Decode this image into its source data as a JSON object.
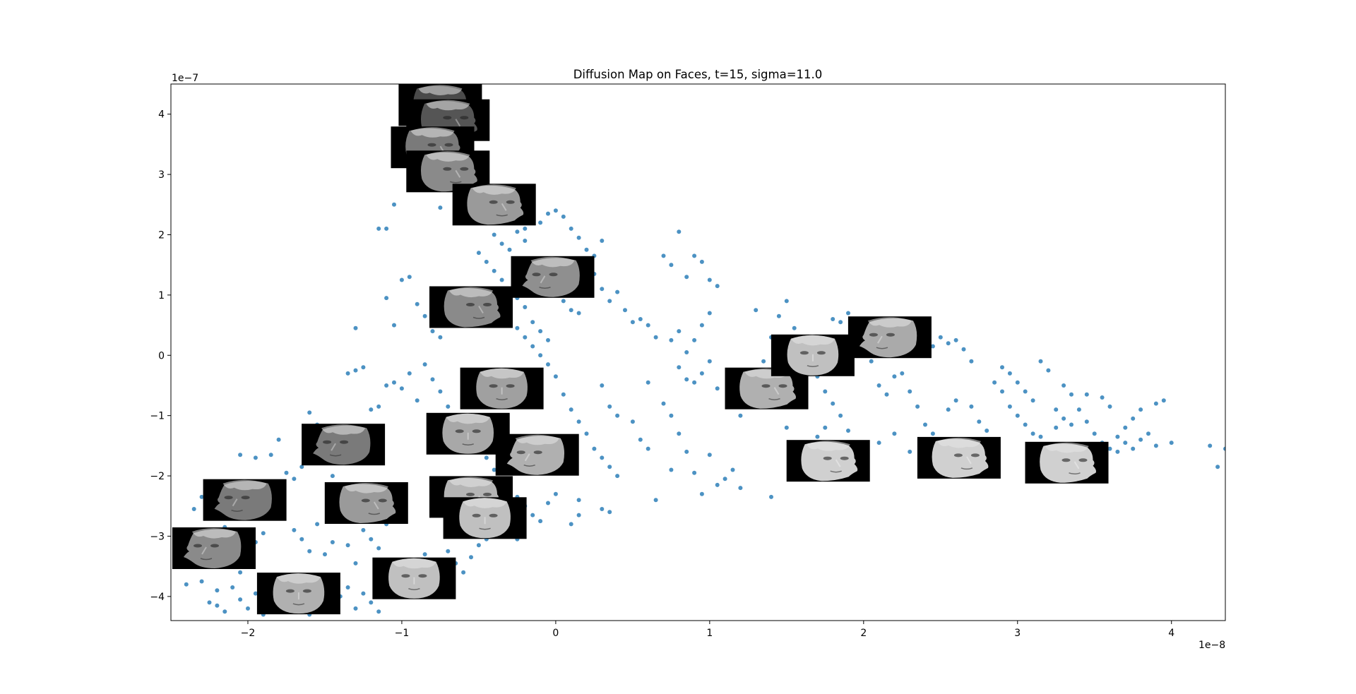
{
  "chart_data": {
    "type": "scatter",
    "title": "Diffusion Map on Faces, t=15, sigma=11.0",
    "xlabel": "",
    "ylabel": "",
    "x_offset_label": "1e−8",
    "y_offset_label": "1e−7",
    "x_scale_exponent": -8,
    "y_scale_exponent": -7,
    "xlim": [
      -2.5,
      4.35
    ],
    "ylim": [
      -4.4,
      4.5
    ],
    "x_ticks": [
      -2,
      -1,
      0,
      1,
      2,
      3,
      4
    ],
    "y_ticks": [
      -4,
      -3,
      -2,
      -1,
      0,
      1,
      2,
      3,
      4
    ],
    "x_tick_labels": [
      "−2",
      "−1",
      "0",
      "1",
      "2",
      "3",
      "4"
    ],
    "y_tick_labels": [
      "−4",
      "−3",
      "−2",
      "−1",
      "0",
      "1",
      "2",
      "3",
      "4"
    ],
    "grid": false,
    "point_color": "#1f77b4",
    "face_thumbnail_color": "#000000",
    "points": [
      [
        -2.4,
        -3.8
      ],
      [
        -2.3,
        -3.75
      ],
      [
        -2.25,
        -4.1
      ],
      [
        -2.2,
        -3.9
      ],
      [
        -2.2,
        -4.15
      ],
      [
        -2.15,
        -4.25
      ],
      [
        -2.1,
        -3.85
      ],
      [
        -2.05,
        -4.05
      ],
      [
        -2.0,
        -4.2
      ],
      [
        -1.95,
        -3.95
      ],
      [
        -1.9,
        -4.3
      ],
      [
        -1.85,
        -4.1
      ],
      [
        -1.8,
        -3.8
      ],
      [
        -1.75,
        -4.2
      ],
      [
        -1.7,
        -3.95
      ],
      [
        -1.65,
        -4.05
      ],
      [
        -1.6,
        -4.3
      ],
      [
        -1.55,
        -3.9
      ],
      [
        -1.5,
        -4.15
      ],
      [
        -1.45,
        -3.75
      ],
      [
        -1.4,
        -4.0
      ],
      [
        -1.35,
        -3.85
      ],
      [
        -1.3,
        -4.2
      ],
      [
        -1.25,
        -3.95
      ],
      [
        -1.2,
        -4.1
      ],
      [
        -1.15,
        -4.25
      ],
      [
        -1.1,
        -3.7
      ],
      [
        -1.05,
        -3.9
      ],
      [
        -1.0,
        -3.55
      ],
      [
        -0.95,
        -3.4
      ],
      [
        -0.9,
        -3.6
      ],
      [
        -0.85,
        -3.3
      ],
      [
        -0.8,
        -3.5
      ],
      [
        -0.75,
        -3.8
      ],
      [
        -0.7,
        -3.25
      ],
      [
        -0.65,
        -3.45
      ],
      [
        -0.6,
        -3.6
      ],
      [
        -0.55,
        -3.35
      ],
      [
        -0.5,
        -3.15
      ],
      [
        -0.45,
        -3.05
      ],
      [
        -2.05,
        -1.65
      ],
      [
        -2.0,
        -2.1
      ],
      [
        -1.95,
        -1.7
      ],
      [
        -1.9,
        -2.3
      ],
      [
        -1.85,
        -1.65
      ],
      [
        -1.8,
        -1.4
      ],
      [
        -1.75,
        -1.95
      ],
      [
        -1.7,
        -2.05
      ],
      [
        -1.65,
        -1.85
      ],
      [
        -1.6,
        -0.95
      ],
      [
        -1.55,
        -1.15
      ],
      [
        -1.5,
        -1.3
      ],
      [
        -1.45,
        -2.0
      ],
      [
        -1.4,
        -2.35
      ],
      [
        -1.35,
        -2.55
      ],
      [
        -1.3,
        -2.7
      ],
      [
        -1.25,
        -2.9
      ],
      [
        -1.2,
        -3.05
      ],
      [
        -1.15,
        -3.2
      ],
      [
        -1.1,
        -2.8
      ],
      [
        -1.7,
        -2.9
      ],
      [
        -1.65,
        -3.05
      ],
      [
        -1.6,
        -3.25
      ],
      [
        -1.55,
        -2.8
      ],
      [
        -1.5,
        -3.3
      ],
      [
        -1.45,
        -3.1
      ],
      [
        -1.4,
        -2.75
      ],
      [
        -1.35,
        -3.15
      ],
      [
        -1.3,
        -3.45
      ],
      [
        -1.25,
        -2.6
      ],
      [
        -2.35,
        -2.55
      ],
      [
        -2.3,
        -2.35
      ],
      [
        -2.25,
        -2.7
      ],
      [
        -2.2,
        -2.5
      ],
      [
        -2.15,
        -2.85
      ],
      [
        -2.1,
        -3.3
      ],
      [
        -2.05,
        -3.6
      ],
      [
        -2.0,
        -3.45
      ],
      [
        -1.95,
        -3.1
      ],
      [
        -1.9,
        -2.95
      ],
      [
        -1.35,
        -0.3
      ],
      [
        -1.3,
        -0.25
      ],
      [
        -1.25,
        -0.2
      ],
      [
        -1.2,
        -0.9
      ],
      [
        -1.15,
        -0.85
      ],
      [
        -1.1,
        -0.5
      ],
      [
        -1.05,
        -0.45
      ],
      [
        -1.0,
        -0.55
      ],
      [
        -0.95,
        -0.3
      ],
      [
        -0.9,
        -0.75
      ],
      [
        -1.3,
        0.45
      ],
      [
        -1.1,
        0.95
      ],
      [
        -1.05,
        0.5
      ],
      [
        -1.0,
        1.25
      ],
      [
        -0.95,
        1.3
      ],
      [
        -0.9,
        0.85
      ],
      [
        -0.85,
        0.65
      ],
      [
        -0.8,
        0.4
      ],
      [
        -0.75,
        0.3
      ],
      [
        -0.7,
        0.7
      ],
      [
        -1.15,
        2.1
      ],
      [
        -1.1,
        2.1
      ],
      [
        -1.05,
        2.5
      ],
      [
        -0.95,
        4.15
      ],
      [
        -0.9,
        3.95
      ],
      [
        -0.85,
        3.7
      ],
      [
        -0.8,
        3.45
      ],
      [
        -0.75,
        2.45
      ],
      [
        -0.7,
        2.95
      ],
      [
        -0.65,
        3.2
      ],
      [
        -0.6,
        2.8
      ],
      [
        -0.55,
        2.55
      ],
      [
        -0.5,
        2.35
      ],
      [
        -0.45,
        2.2
      ],
      [
        -0.4,
        2.0
      ],
      [
        -0.35,
        1.85
      ],
      [
        -0.3,
        1.75
      ],
      [
        -0.25,
        2.05
      ],
      [
        -0.2,
        1.9
      ],
      [
        -0.15,
        1.6
      ],
      [
        -0.5,
        1.7
      ],
      [
        -0.45,
        1.55
      ],
      [
        -0.4,
        1.4
      ],
      [
        -0.35,
        1.25
      ],
      [
        -0.3,
        1.1
      ],
      [
        -0.25,
        0.95
      ],
      [
        -0.2,
        0.8
      ],
      [
        -0.15,
        0.55
      ],
      [
        -0.1,
        0.4
      ],
      [
        -0.05,
        0.25
      ],
      [
        -0.85,
        -0.15
      ],
      [
        -0.8,
        -0.4
      ],
      [
        -0.75,
        -0.6
      ],
      [
        -0.7,
        -0.85
      ],
      [
        -0.65,
        -1.0
      ],
      [
        -0.6,
        -1.2
      ],
      [
        -0.55,
        -1.35
      ],
      [
        -0.5,
        -1.5
      ],
      [
        -0.45,
        -1.7
      ],
      [
        -0.4,
        -1.9
      ],
      [
        -0.35,
        -2.05
      ],
      [
        -0.3,
        -2.2
      ],
      [
        -0.25,
        -2.35
      ],
      [
        -0.2,
        -2.5
      ],
      [
        -0.15,
        -2.65
      ],
      [
        -0.1,
        -2.75
      ],
      [
        -0.05,
        -2.45
      ],
      [
        0.0,
        -2.3
      ],
      [
        -0.3,
        -2.85
      ],
      [
        -0.25,
        -3.05
      ],
      [
        -0.3,
        0.6
      ],
      [
        -0.25,
        0.45
      ],
      [
        -0.2,
        0.3
      ],
      [
        -0.15,
        0.15
      ],
      [
        -0.1,
        0.0
      ],
      [
        -0.05,
        -0.15
      ],
      [
        0.0,
        -0.35
      ],
      [
        0.05,
        -0.65
      ],
      [
        0.1,
        -0.9
      ],
      [
        0.15,
        -1.1
      ],
      [
        0.2,
        -1.3
      ],
      [
        0.25,
        -1.55
      ],
      [
        0.3,
        -1.7
      ],
      [
        0.35,
        -1.85
      ],
      [
        0.4,
        -2.0
      ],
      [
        0.15,
        -2.4
      ],
      [
        0.15,
        -2.65
      ],
      [
        0.1,
        -2.8
      ],
      [
        0.3,
        -2.55
      ],
      [
        0.35,
        -2.6
      ],
      [
        0.0,
        1.05
      ],
      [
        0.05,
        0.9
      ],
      [
        0.1,
        0.75
      ],
      [
        0.15,
        0.7
      ],
      [
        0.2,
        1.2
      ],
      [
        0.25,
        1.35
      ],
      [
        0.3,
        1.1
      ],
      [
        0.35,
        0.9
      ],
      [
        0.4,
        1.05
      ],
      [
        0.45,
        0.75
      ],
      [
        0.5,
        0.55
      ],
      [
        0.55,
        0.6
      ],
      [
        0.6,
        0.5
      ],
      [
        0.65,
        0.3
      ],
      [
        0.3,
        -0.5
      ],
      [
        0.35,
        -0.85
      ],
      [
        0.4,
        -1.0
      ],
      [
        0.5,
        -1.1
      ],
      [
        0.55,
        -1.4
      ],
      [
        0.6,
        -1.55
      ],
      [
        -0.1,
        2.2
      ],
      [
        -0.05,
        2.35
      ],
      [
        0.0,
        2.4
      ],
      [
        0.05,
        2.3
      ],
      [
        0.1,
        2.1
      ],
      [
        0.15,
        1.95
      ],
      [
        0.2,
        1.75
      ],
      [
        0.25,
        1.65
      ],
      [
        0.3,
        1.9
      ],
      [
        -0.2,
        2.1
      ],
      [
        0.7,
        1.65
      ],
      [
        0.75,
        1.5
      ],
      [
        0.8,
        2.05
      ],
      [
        0.85,
        1.3
      ],
      [
        0.9,
        1.65
      ],
      [
        0.95,
        1.55
      ],
      [
        1.0,
        1.25
      ],
      [
        1.05,
        1.15
      ],
      [
        1.0,
        0.7
      ],
      [
        0.95,
        0.5
      ],
      [
        0.9,
        0.25
      ],
      [
        0.85,
        0.05
      ],
      [
        0.8,
        0.4
      ],
      [
        0.75,
        0.25
      ],
      [
        0.8,
        -0.2
      ],
      [
        0.85,
        -0.4
      ],
      [
        0.9,
        -0.45
      ],
      [
        0.95,
        -0.3
      ],
      [
        1.0,
        -0.1
      ],
      [
        1.05,
        -0.55
      ],
      [
        0.7,
        -0.8
      ],
      [
        0.75,
        -1.0
      ],
      [
        0.8,
        -1.3
      ],
      [
        0.85,
        -1.6
      ],
      [
        0.9,
        -1.95
      ],
      [
        0.95,
        -2.3
      ],
      [
        1.05,
        -2.15
      ],
      [
        1.1,
        -2.05
      ],
      [
        1.15,
        -1.9
      ],
      [
        1.2,
        -2.2
      ],
      [
        0.6,
        -0.45
      ],
      [
        0.65,
        -2.4
      ],
      [
        0.75,
        -1.9
      ],
      [
        1.0,
        -1.65
      ],
      [
        1.2,
        -1.0
      ],
      [
        1.25,
        -0.75
      ],
      [
        1.3,
        -0.4
      ],
      [
        1.35,
        -0.1
      ],
      [
        1.4,
        0.3
      ],
      [
        1.45,
        0.65
      ],
      [
        1.5,
        0.9
      ],
      [
        1.55,
        0.45
      ],
      [
        1.6,
        0.2
      ],
      [
        1.65,
        -0.1
      ],
      [
        1.7,
        -0.35
      ],
      [
        1.75,
        -0.6
      ],
      [
        1.8,
        -0.8
      ],
      [
        1.85,
        -1.0
      ],
      [
        1.9,
        -1.25
      ],
      [
        1.4,
        -2.35
      ],
      [
        1.3,
        0.75
      ],
      [
        1.5,
        -1.2
      ],
      [
        1.6,
        -1.45
      ],
      [
        1.7,
        -1.35
      ],
      [
        1.75,
        -1.2
      ],
      [
        1.8,
        0.6
      ],
      [
        1.85,
        0.55
      ],
      [
        1.9,
        0.7
      ],
      [
        1.95,
        0.35
      ],
      [
        2.0,
        0.15
      ],
      [
        2.05,
        -0.1
      ],
      [
        2.1,
        -0.5
      ],
      [
        2.15,
        -0.65
      ],
      [
        2.2,
        -0.35
      ],
      [
        2.25,
        -0.3
      ],
      [
        2.3,
        -0.6
      ],
      [
        2.35,
        -0.85
      ],
      [
        2.4,
        -1.15
      ],
      [
        2.45,
        -1.3
      ],
      [
        2.5,
        -1.5
      ],
      [
        2.1,
        -1.45
      ],
      [
        2.2,
        -1.3
      ],
      [
        2.3,
        -1.6
      ],
      [
        2.4,
        -1.55
      ],
      [
        2.45,
        0.15
      ],
      [
        2.5,
        0.3
      ],
      [
        2.55,
        0.2
      ],
      [
        2.6,
        0.25
      ],
      [
        2.65,
        0.1
      ],
      [
        2.7,
        -0.1
      ],
      [
        2.6,
        -0.75
      ],
      [
        2.7,
        -0.85
      ],
      [
        2.75,
        -1.1
      ],
      [
        2.8,
        -1.25
      ],
      [
        2.85,
        -1.45
      ],
      [
        2.9,
        -0.2
      ],
      [
        2.95,
        -0.3
      ],
      [
        3.0,
        -0.45
      ],
      [
        3.05,
        -0.6
      ],
      [
        3.1,
        -0.75
      ],
      [
        2.85,
        -0.45
      ],
      [
        2.9,
        -0.6
      ],
      [
        2.95,
        -0.85
      ],
      [
        3.0,
        -1.0
      ],
      [
        3.05,
        -1.15
      ],
      [
        3.1,
        -1.3
      ],
      [
        3.15,
        -0.1
      ],
      [
        3.2,
        -0.25
      ],
      [
        3.25,
        -0.9
      ],
      [
        3.3,
        -0.5
      ],
      [
        3.35,
        -0.65
      ],
      [
        3.4,
        -0.9
      ],
      [
        3.45,
        -1.1
      ],
      [
        3.5,
        -1.3
      ],
      [
        3.55,
        -1.45
      ],
      [
        3.6,
        -1.55
      ],
      [
        3.65,
        -1.35
      ],
      [
        3.7,
        -1.2
      ],
      [
        3.75,
        -1.05
      ],
      [
        3.8,
        -0.9
      ],
      [
        3.85,
        -1.3
      ],
      [
        3.9,
        -1.5
      ],
      [
        3.95,
        -0.75
      ],
      [
        3.7,
        -1.45
      ],
      [
        3.75,
        -1.55
      ],
      [
        3.8,
        -1.4
      ],
      [
        4.0,
        -1.45
      ],
      [
        4.25,
        -1.5
      ],
      [
        4.3,
        -1.85
      ],
      [
        4.35,
        -1.55
      ],
      [
        3.45,
        -0.65
      ],
      [
        3.55,
        -0.7
      ],
      [
        3.6,
        -0.85
      ],
      [
        3.3,
        -1.05
      ],
      [
        3.25,
        -1.2
      ],
      [
        3.15,
        -1.35
      ],
      [
        3.35,
        -1.15
      ],
      [
        3.9,
        -0.8
      ],
      [
        3.65,
        -1.6
      ],
      [
        2.55,
        -0.9
      ]
    ],
    "face_thumbnails": [
      {
        "x": -0.75,
        "y": 4.15,
        "shade": "#4a4a4a",
        "orientation": "right"
      },
      {
        "x": -0.7,
        "y": 3.9,
        "shade": "#555555",
        "orientation": "right"
      },
      {
        "x": -0.8,
        "y": 3.45,
        "shade": "#7a7a7a",
        "orientation": "right"
      },
      {
        "x": -0.7,
        "y": 3.05,
        "shade": "#8a8a8a",
        "orientation": "right"
      },
      {
        "x": -0.4,
        "y": 2.5,
        "shade": "#9a9a9a",
        "orientation": "right"
      },
      {
        "x": -0.02,
        "y": 1.3,
        "shade": "#8f8f8f",
        "orientation": "left"
      },
      {
        "x": -0.55,
        "y": 0.8,
        "shade": "#8a8a8a",
        "orientation": "right"
      },
      {
        "x": -0.35,
        "y": -0.55,
        "shade": "#a0a0a0",
        "orientation": "front"
      },
      {
        "x": -0.57,
        "y": -1.3,
        "shade": "#a8a8a8",
        "orientation": "front"
      },
      {
        "x": -0.12,
        "y": -1.65,
        "shade": "#b0b0b0",
        "orientation": "left"
      },
      {
        "x": -1.38,
        "y": -1.48,
        "shade": "#7a7a7a",
        "orientation": "left"
      },
      {
        "x": -2.02,
        "y": -2.4,
        "shade": "#7a7a7a",
        "orientation": "left"
      },
      {
        "x": -1.23,
        "y": -2.45,
        "shade": "#9a9a9a",
        "orientation": "right"
      },
      {
        "x": -0.55,
        "y": -2.35,
        "shade": "#b5b5b5",
        "orientation": "right"
      },
      {
        "x": -0.46,
        "y": -2.7,
        "shade": "#c0c0c0",
        "orientation": "front"
      },
      {
        "x": -2.22,
        "y": -3.2,
        "shade": "#8a8a8a",
        "orientation": "left"
      },
      {
        "x": -1.67,
        "y": -3.95,
        "shade": "#b0b0b0",
        "orientation": "front"
      },
      {
        "x": -0.92,
        "y": -3.7,
        "shade": "#c0c0c0",
        "orientation": "front"
      },
      {
        "x": 1.37,
        "y": -0.55,
        "shade": "#b0b0b0",
        "orientation": "right"
      },
      {
        "x": 1.67,
        "y": 0.0,
        "shade": "#c0c0c0",
        "orientation": "front"
      },
      {
        "x": 2.17,
        "y": 0.3,
        "shade": "#aaaaaa",
        "orientation": "left"
      },
      {
        "x": 1.77,
        "y": -1.75,
        "shade": "#d0d0d0",
        "orientation": "right"
      },
      {
        "x": 2.62,
        "y": -1.7,
        "shade": "#d0d0d0",
        "orientation": "right"
      },
      {
        "x": 3.32,
        "y": -1.78,
        "shade": "#d0d0d0",
        "orientation": "right"
      }
    ]
  }
}
